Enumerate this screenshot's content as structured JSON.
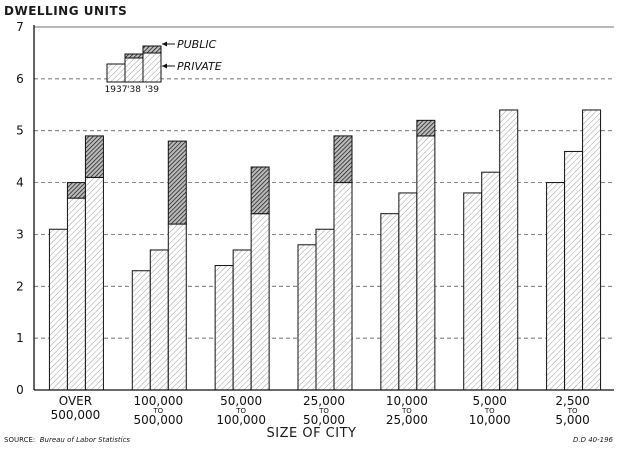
{
  "chart_data": {
    "type": "bar",
    "stacked": true,
    "ylabel": "DWELLING UNITS",
    "xlabel": "SIZE OF CITY",
    "ylim": [
      0,
      7
    ],
    "yticks": [
      0,
      1,
      2,
      3,
      4,
      5,
      6,
      7
    ],
    "grid": true,
    "legend_position": "top-left",
    "categories": [
      [
        "OVER",
        "500,000"
      ],
      [
        "100,000",
        "TO",
        "500,000"
      ],
      [
        "50,000",
        "TO",
        "100,000"
      ],
      [
        "25,000",
        "TO",
        "50,000"
      ],
      [
        "10,000",
        "TO",
        "25,000"
      ],
      [
        "5,000",
        "TO",
        "10,000"
      ],
      [
        "2,500",
        "TO",
        "5,000"
      ]
    ],
    "years": [
      "1937",
      "'38",
      "'39"
    ],
    "series": [
      {
        "name": "PRIVATE",
        "pattern": "light",
        "values": [
          [
            3.1,
            3.7,
            4.1
          ],
          [
            2.3,
            2.7,
            3.2
          ],
          [
            2.4,
            2.7,
            3.4
          ],
          [
            2.8,
            3.1,
            4.0
          ],
          [
            3.4,
            3.8,
            4.9
          ],
          [
            3.8,
            4.2,
            5.4
          ],
          [
            4.0,
            4.6,
            5.4
          ]
        ]
      },
      {
        "name": "PUBLIC",
        "pattern": "dark",
        "values": [
          [
            0.0,
            0.3,
            0.8
          ],
          [
            0.0,
            0.0,
            1.6
          ],
          [
            0.0,
            0.0,
            0.9
          ],
          [
            0.0,
            0.0,
            0.9
          ],
          [
            0.0,
            0.0,
            0.3
          ],
          [
            0.0,
            0.0,
            0.0
          ],
          [
            0.0,
            0.0,
            0.0
          ]
        ]
      }
    ],
    "legend": {
      "public_label": "PUBLIC",
      "private_label": "PRIVATE",
      "year_labels": [
        "1937",
        "'38",
        "'39"
      ]
    }
  },
  "source": {
    "prefix": "SOURCE:",
    "text": "Bureau of Labor Statistics"
  },
  "code": "D.D 40-196"
}
